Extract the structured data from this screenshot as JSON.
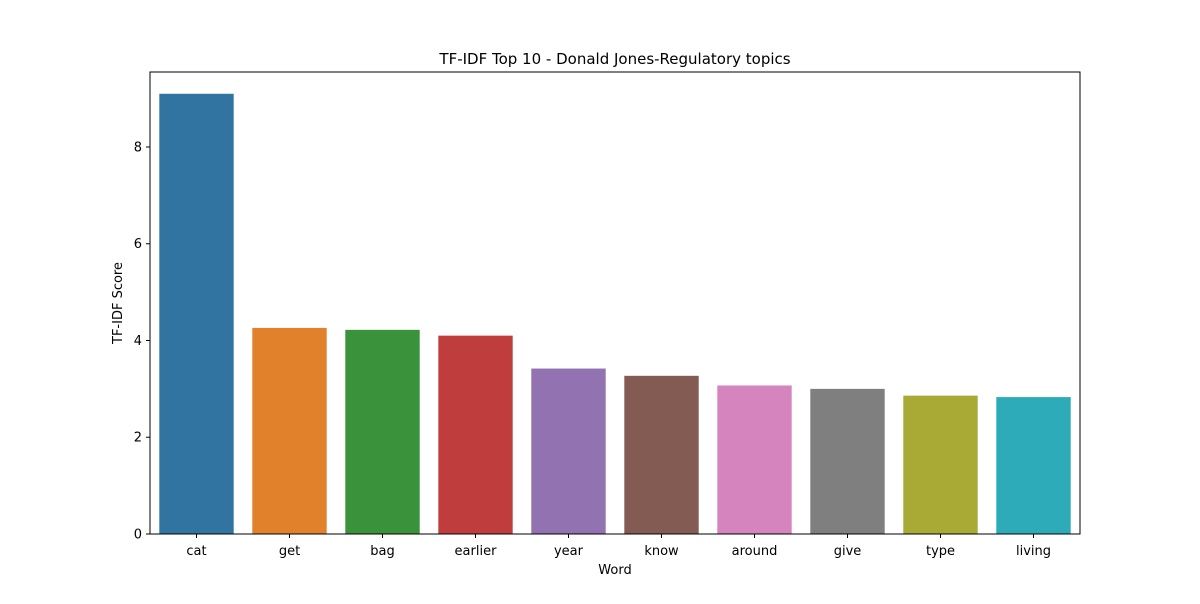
{
  "chart_data": {
    "type": "bar",
    "title": "TF-IDF Top 10 - Donald Jones-Regulatory topics",
    "xlabel": "Word",
    "ylabel": "TF-IDF Score",
    "categories": [
      "cat",
      "get",
      "bag",
      "earlier",
      "year",
      "know",
      "around",
      "give",
      "type",
      "living"
    ],
    "values": [
      9.1,
      4.26,
      4.22,
      4.1,
      3.42,
      3.27,
      3.07,
      3.0,
      2.86,
      2.83
    ],
    "colors": [
      "#3274a1",
      "#e1812c",
      "#3a923a",
      "#c03d3e",
      "#9372b2",
      "#845b53",
      "#d684bd",
      "#7f7f7f",
      "#a9aa35",
      "#2eabb8"
    ],
    "ylim": [
      0,
      9.55
    ],
    "yticks": [
      0,
      2,
      4,
      6,
      8
    ],
    "grid": false,
    "legend": "none"
  }
}
